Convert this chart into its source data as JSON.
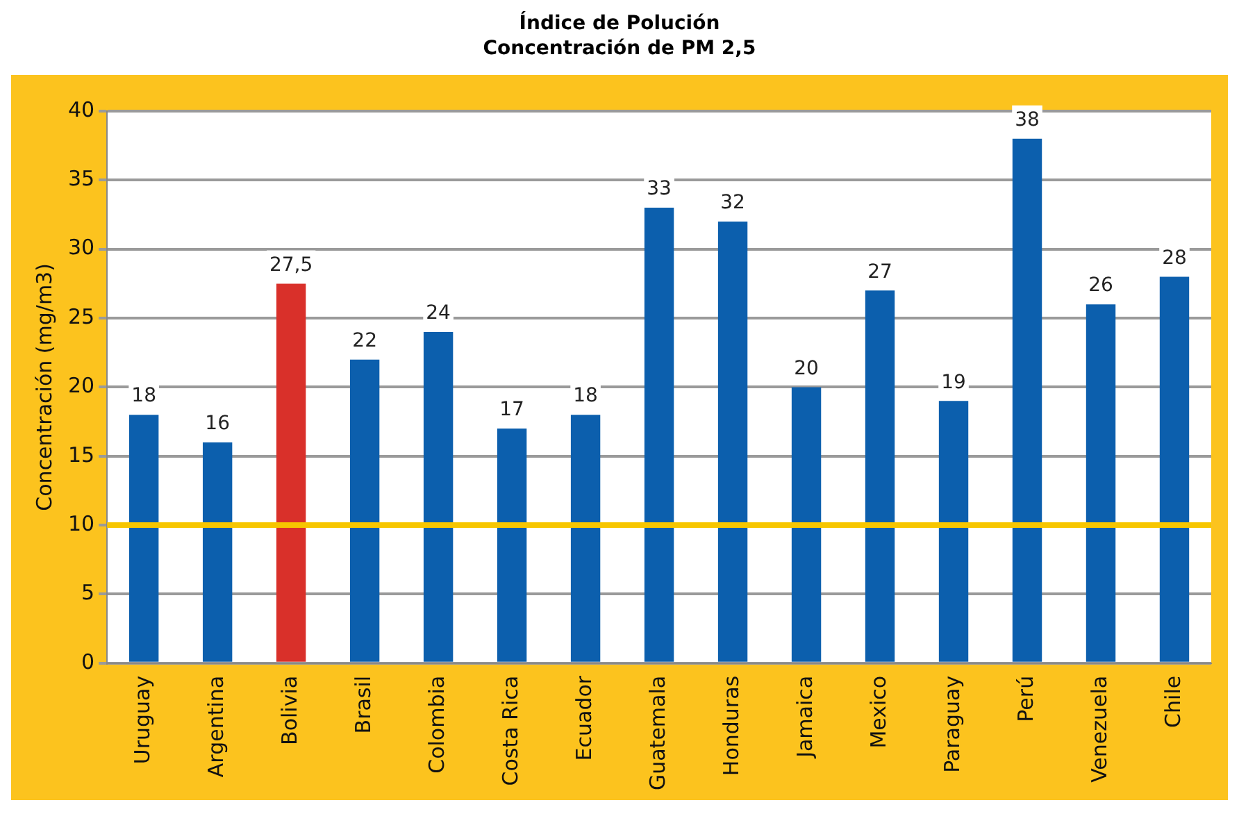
{
  "chart_data": {
    "type": "bar",
    "title": "Índice de Polución",
    "subtitle": "Concentración de PM 2,5",
    "ylabel": "Concentración (mg/m3)",
    "categories": [
      "Uruguay",
      "Argentina",
      "Bolivia",
      "Brasil",
      "Colombia",
      "Costa Rica",
      "Ecuador",
      "Guatemala",
      "Honduras",
      "Jamaica",
      "Mexico",
      "Paraguay",
      "Perú",
      "Venezuela",
      "Chile"
    ],
    "values": [
      18,
      16,
      27.5,
      22,
      24,
      17,
      18,
      33,
      32,
      20,
      27,
      19,
      38,
      26,
      28
    ],
    "colors": [
      "#0c5fad",
      "#0c5fad",
      "#d9302a",
      "#0c5fad",
      "#0c5fad",
      "#0c5fad",
      "#0c5fad",
      "#0c5fad",
      "#0c5fad",
      "#0c5fad",
      "#0c5fad",
      "#0c5fad",
      "#0c5fad",
      "#0c5fad",
      "#0c5fad"
    ],
    "value_labels": [
      "18",
      "16",
      "27,5",
      "22",
      "24",
      "17",
      "18",
      "33",
      "32",
      "20",
      "27",
      "19",
      "38",
      "26",
      "28"
    ],
    "ylim": [
      0,
      40
    ],
    "yticks": [
      0,
      5,
      10,
      15,
      20,
      25,
      30,
      35,
      40
    ],
    "grid": "y",
    "legend": false,
    "ref_lines": [
      {
        "axis": "y",
        "value": 10,
        "color": "#f7c600"
      }
    ]
  }
}
